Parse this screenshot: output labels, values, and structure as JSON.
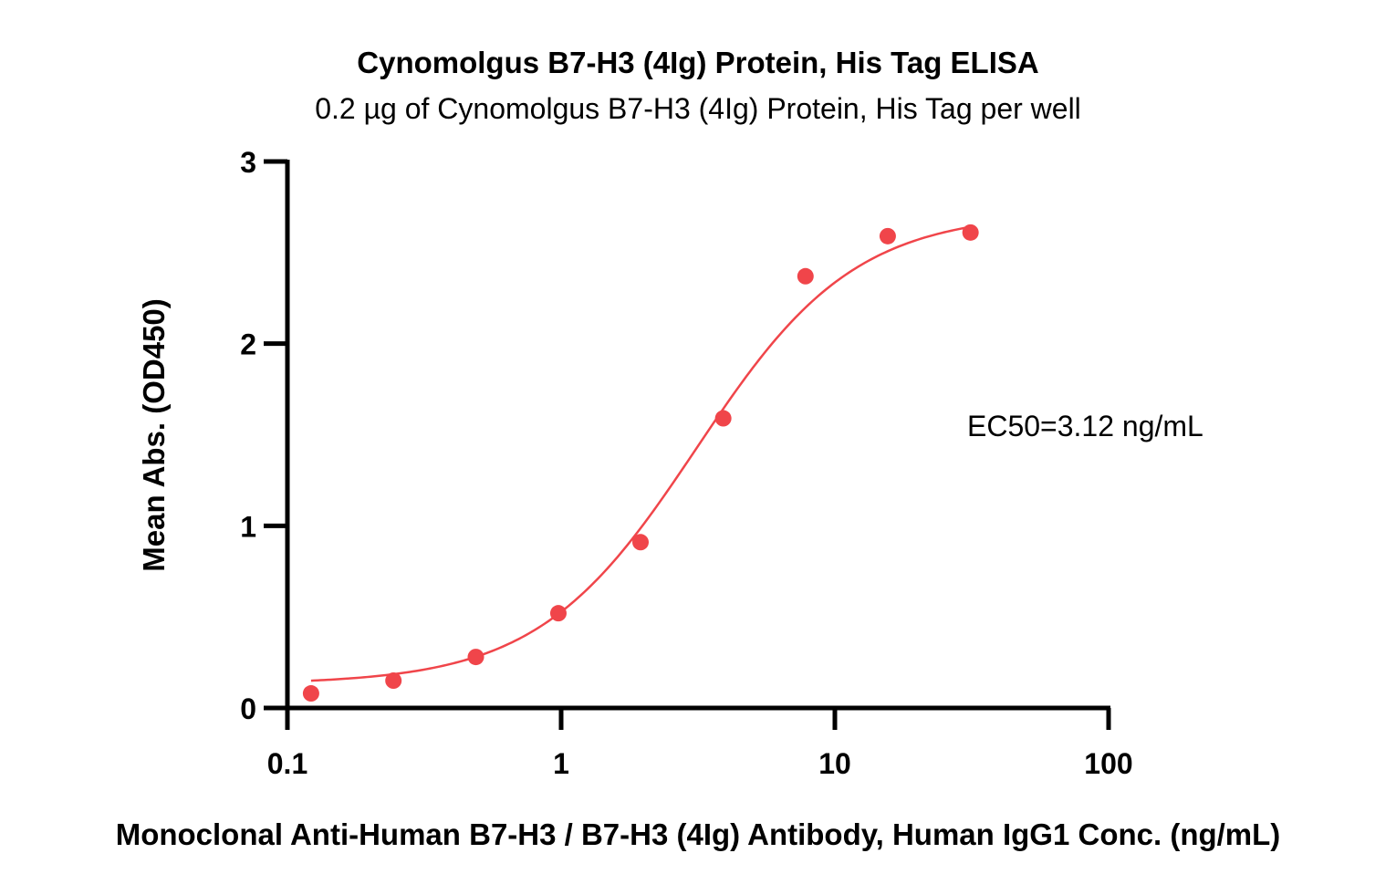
{
  "chart_data": {
    "type": "scatter",
    "title": "Cynomolgus B7-H3 (4Ig) Protein, His Tag ELISA",
    "subtitle": "0.2 µg of Cynomolgus B7-H3 (4Ig) Protein, His Tag per well",
    "xlabel": "Monoclonal Anti-Human B7-H3 / B7-H3 (4Ig) Antibody, Human IgG1 Conc. (ng/mL)",
    "ylabel": "Mean Abs. (OD450)",
    "x_scale": "log",
    "xlim": [
      0.1,
      100
    ],
    "ylim": [
      0,
      3
    ],
    "x_ticks": [
      0.1,
      1,
      10,
      100
    ],
    "x_tick_labels": [
      "0.1",
      "1",
      "10",
      "100"
    ],
    "y_ticks": [
      0,
      1,
      2,
      3
    ],
    "y_tick_labels": [
      "0",
      "1",
      "2",
      "3"
    ],
    "grid": false,
    "annotation": "EC50=3.12 ng/mL",
    "color": "#f0454a",
    "series": [
      {
        "x": [
          0.122,
          0.244,
          0.488,
          0.977,
          1.95,
          3.91,
          7.81,
          15.6,
          31.3
        ],
        "y": [
          0.08,
          0.15,
          0.28,
          0.52,
          0.91,
          1.59,
          2.37,
          2.59,
          2.61
        ]
      }
    ],
    "fit": {
      "model": "4PL",
      "bottom": 0.13,
      "top": 2.72,
      "ec50": 3.12,
      "hill": 1.5,
      "x_range": [
        0.122,
        31.3
      ]
    }
  }
}
